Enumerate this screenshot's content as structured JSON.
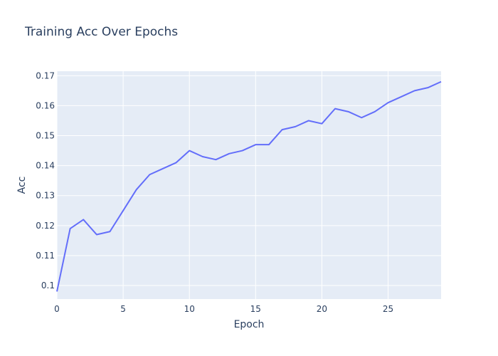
{
  "chart_data": {
    "type": "line",
    "title": "Training Acc Over Epochs",
    "xlabel": "Epoch",
    "ylabel": "Acc",
    "xlim": [
      0,
      29
    ],
    "ylim": [
      0.0955,
      0.1715
    ],
    "x_ticks": [
      0,
      5,
      10,
      15,
      20,
      25
    ],
    "y_ticks": [
      0.1,
      0.11,
      0.12,
      0.13,
      0.14,
      0.15,
      0.16,
      0.17
    ],
    "x_tick_labels": [
      "0",
      "5",
      "10",
      "15",
      "20",
      "25"
    ],
    "y_tick_labels": [
      "0.1",
      "0.11",
      "0.12",
      "0.13",
      "0.14",
      "0.15",
      "0.16",
      "0.17"
    ],
    "grid": true,
    "series": [
      {
        "color": "#636efa",
        "x": [
          0,
          1,
          2,
          3,
          4,
          5,
          6,
          7,
          8,
          9,
          10,
          11,
          12,
          13,
          14,
          15,
          16,
          17,
          18,
          19,
          20,
          21,
          22,
          23,
          24,
          25,
          26,
          27,
          28,
          29
        ],
        "y": [
          0.098,
          0.119,
          0.122,
          0.117,
          0.118,
          0.125,
          0.132,
          0.137,
          0.139,
          0.141,
          0.145,
          0.143,
          0.142,
          0.144,
          0.145,
          0.147,
          0.147,
          0.152,
          0.153,
          0.155,
          0.154,
          0.159,
          0.158,
          0.156,
          0.158,
          0.161,
          0.163,
          0.165,
          0.166,
          0.168
        ]
      }
    ]
  }
}
